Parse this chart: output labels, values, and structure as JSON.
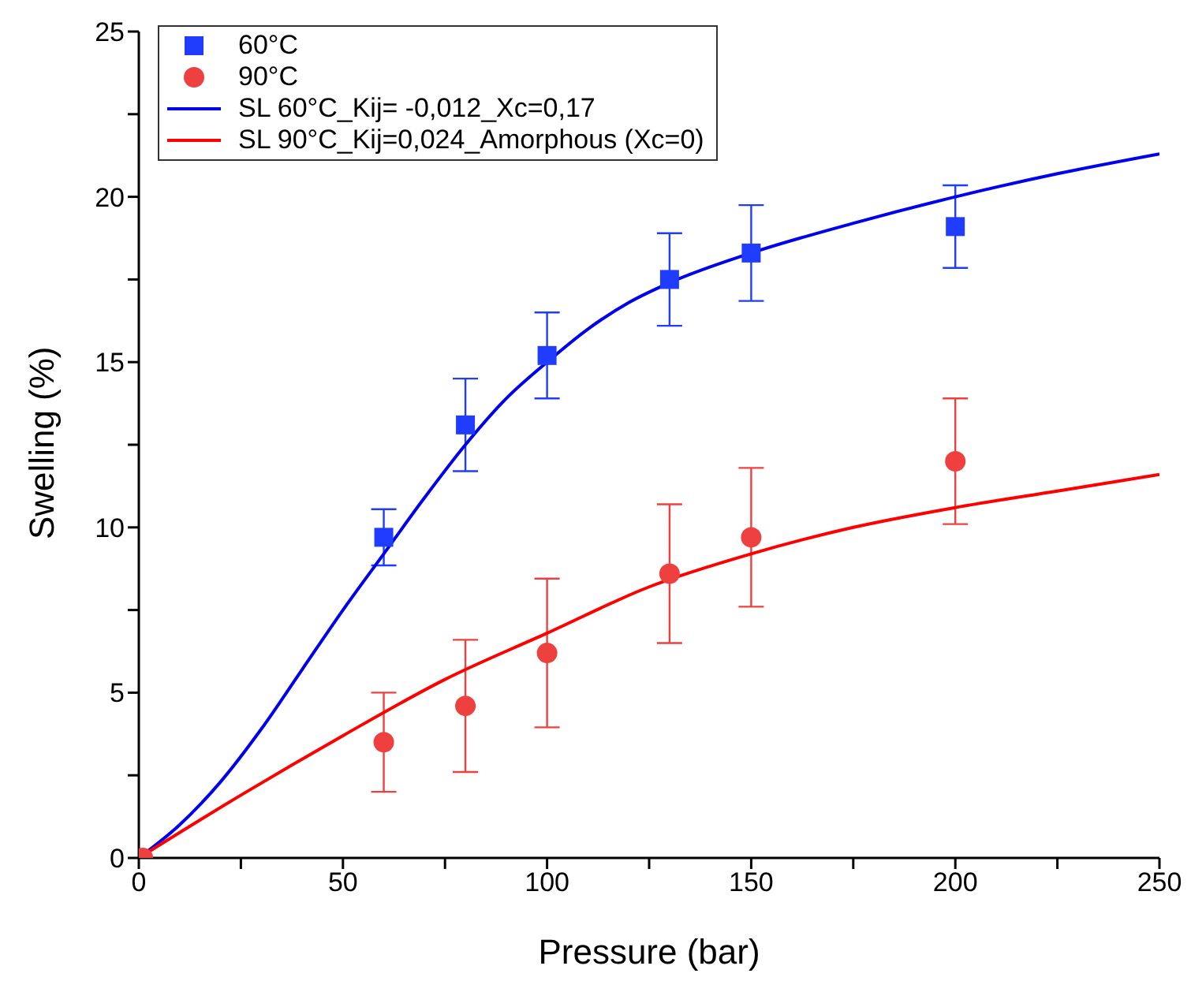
{
  "chart_data": {
    "type": "scatter",
    "xlabel": "Pressure (bar)",
    "ylabel": "Swelling (%)",
    "xlim": [
      0,
      250
    ],
    "xticks": [
      0,
      {
        "value": 25,
        "label": null
      },
      50,
      {
        "value": 75,
        "label": null
      },
      100,
      {
        "value": 125,
        "label": null
      },
      150,
      {
        "value": 175,
        "label": null
      },
      200,
      {
        "value": 225,
        "label": null
      },
      250
    ],
    "ylim": [
      0,
      25
    ],
    "yticks": [
      0,
      {
        "value": 2.5,
        "label": null
      },
      5,
      {
        "value": 7.5,
        "label": null
      },
      10,
      {
        "value": 12.5,
        "label": null
      },
      15,
      {
        "value": 17.5,
        "label": null
      },
      20,
      {
        "value": 22.5,
        "label": null
      },
      25
    ],
    "grid": false,
    "legend": "top left",
    "series": [
      {
        "name": "60°C",
        "marker": "square",
        "color": "#1f3cff",
        "x": [
          60,
          80,
          100,
          130,
          150,
          200
        ],
        "values": [
          9.7,
          13.1,
          15.2,
          17.5,
          18.3,
          19.1
        ],
        "errors": [
          0.85,
          1.4,
          1.3,
          1.4,
          1.45,
          1.25
        ]
      },
      {
        "name": "90°C",
        "marker": "circle",
        "color": "#ef4040",
        "x": [
          1,
          60,
          80,
          100,
          130,
          150,
          200
        ],
        "values": [
          0,
          3.5,
          4.6,
          6.2,
          8.6,
          9.7,
          12.0
        ],
        "errors": [
          null,
          1.5,
          2.0,
          2.25,
          2.1,
          2.1,
          1.9
        ]
      },
      {
        "name": "SL 60°C_Kij= -0,012_Xc=0,17",
        "type": "line",
        "marker": "none",
        "color": "#0000ee",
        "x": [
          0,
          10,
          20,
          30,
          40,
          50,
          60,
          70,
          80,
          90,
          100,
          110,
          120,
          130,
          150,
          175,
          200,
          225,
          250
        ],
        "values": [
          0,
          1.0,
          2.3,
          3.9,
          5.7,
          7.5,
          9.2,
          10.9,
          12.5,
          13.9,
          15.0,
          16.0,
          16.8,
          17.4,
          18.3,
          19.2,
          20.0,
          20.7,
          21.3
        ]
      },
      {
        "name": "SL 90°C_Kij=0,024_Amorphous (Xc=0)",
        "type": "line",
        "marker": "none",
        "color": "#ff0000",
        "x": [
          0,
          25,
          50,
          75,
          100,
          125,
          150,
          175,
          200,
          225,
          250
        ],
        "values": [
          0,
          1.9,
          3.7,
          5.4,
          6.8,
          8.2,
          9.2,
          10.0,
          10.6,
          11.1,
          11.6
        ]
      }
    ]
  }
}
